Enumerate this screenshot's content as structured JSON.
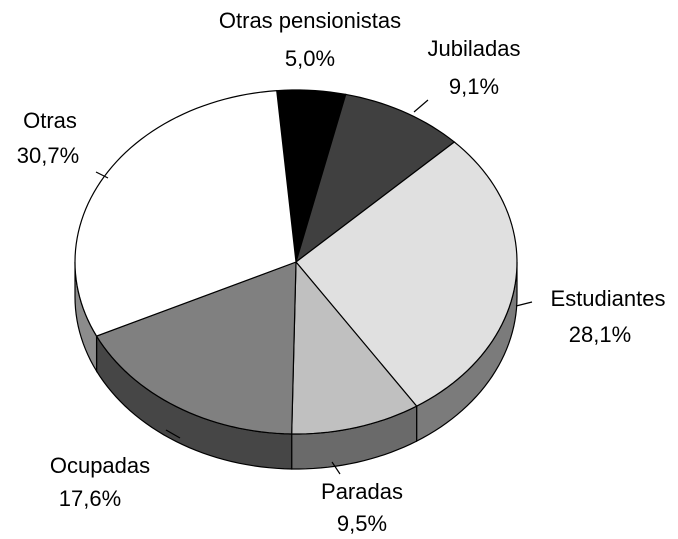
{
  "chart_data": {
    "type": "pie",
    "categories": [
      "Otras pensionistas",
      "Jubiladas",
      "Estudiantes",
      "Paradas",
      "Ocupadas",
      "Otras"
    ],
    "values": [
      5.0,
      9.1,
      28.1,
      9.5,
      17.6,
      30.7
    ],
    "value_labels": [
      "5,0%",
      "9,1%",
      "28,1%",
      "9,5%",
      "17,6%",
      "30,7%"
    ],
    "colors": [
      "#000000",
      "#404040",
      "#e0e0e0",
      "#c0c0c0",
      "#808080",
      "#ffffff"
    ]
  }
}
